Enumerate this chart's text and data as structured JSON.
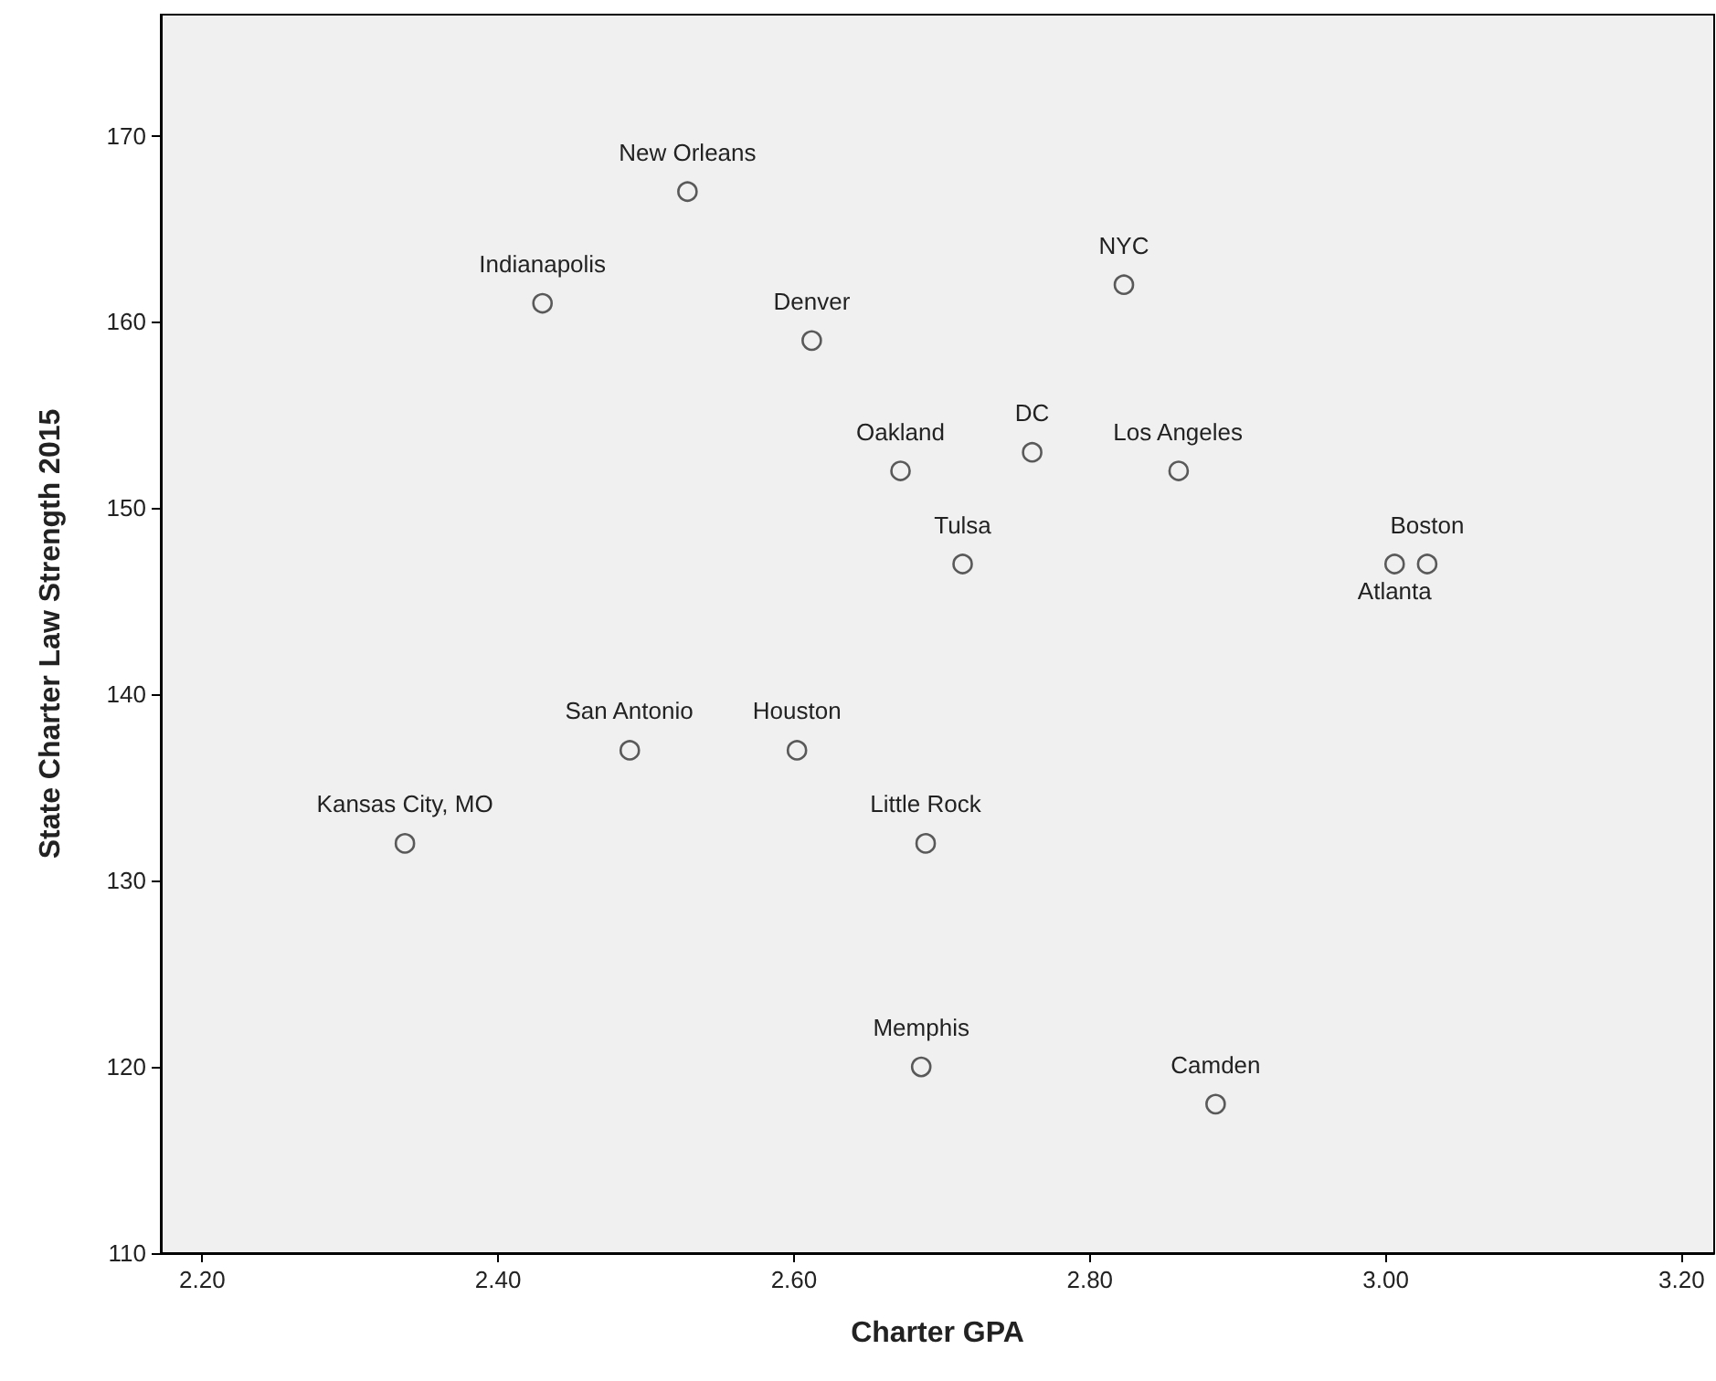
{
  "chart_data": {
    "type": "scatter",
    "xlabel": "Charter GPA",
    "ylabel": "State Charter Law Strength 2015",
    "marker": "circle",
    "grid": false,
    "series": [
      {
        "color": "#333333",
        "x": [
          2.528,
          2.43,
          2.612,
          2.823,
          2.672,
          2.761,
          2.86,
          2.714,
          3.028,
          3.006,
          2.489,
          2.602,
          2.337,
          2.689,
          2.686,
          2.885
        ],
        "values": [
          167,
          161,
          159,
          162,
          152,
          153,
          152,
          147,
          147,
          147,
          137,
          137,
          132,
          132,
          120,
          118
        ]
      }
    ],
    "xlim": [
      2.172,
      3.222
    ],
    "ylim": [
      110,
      176.5
    ],
    "xticks": [
      {
        "value": 2.2,
        "label": "2.20"
      },
      {
        "value": 2.4,
        "label": "2.40"
      },
      {
        "value": 2.6,
        "label": "2.60"
      },
      {
        "value": 2.8,
        "label": "2.80"
      },
      {
        "value": 3.0,
        "label": "3.00"
      },
      {
        "value": 3.2,
        "label": "3.20"
      }
    ],
    "yticks": [
      110,
      120,
      130,
      140,
      150,
      160,
      170
    ],
    "annotations": [
      {
        "text": "New Orleans",
        "x": 2.528,
        "y": 167
      },
      {
        "text": "Indianapolis",
        "x": 2.43,
        "y": 161
      },
      {
        "text": "Denver",
        "x": 2.612,
        "y": 159
      },
      {
        "text": "NYC",
        "x": 2.823,
        "y": 162
      },
      {
        "text": "Oakland",
        "x": 2.672,
        "y": 152
      },
      {
        "text": "DC",
        "x": 2.761,
        "y": 153
      },
      {
        "text": "Los Angeles",
        "x": 2.86,
        "y": 152
      },
      {
        "text": "Tulsa",
        "x": 2.714,
        "y": 147
      },
      {
        "text": "Boston",
        "x": 3.028,
        "y": 147
      },
      {
        "text": "Atlanta",
        "x": 3.006,
        "y": 147
      },
      {
        "text": "San Antonio",
        "x": 2.489,
        "y": 137
      },
      {
        "text": "Houston",
        "x": 2.602,
        "y": 137
      },
      {
        "text": "Kansas City, MO",
        "x": 2.337,
        "y": 132
      },
      {
        "text": "Little Rock",
        "x": 2.689,
        "y": 132
      },
      {
        "text": "Memphis",
        "x": 2.686,
        "y": 120
      },
      {
        "text": "Camden",
        "x": 2.885,
        "y": 118
      }
    ]
  }
}
